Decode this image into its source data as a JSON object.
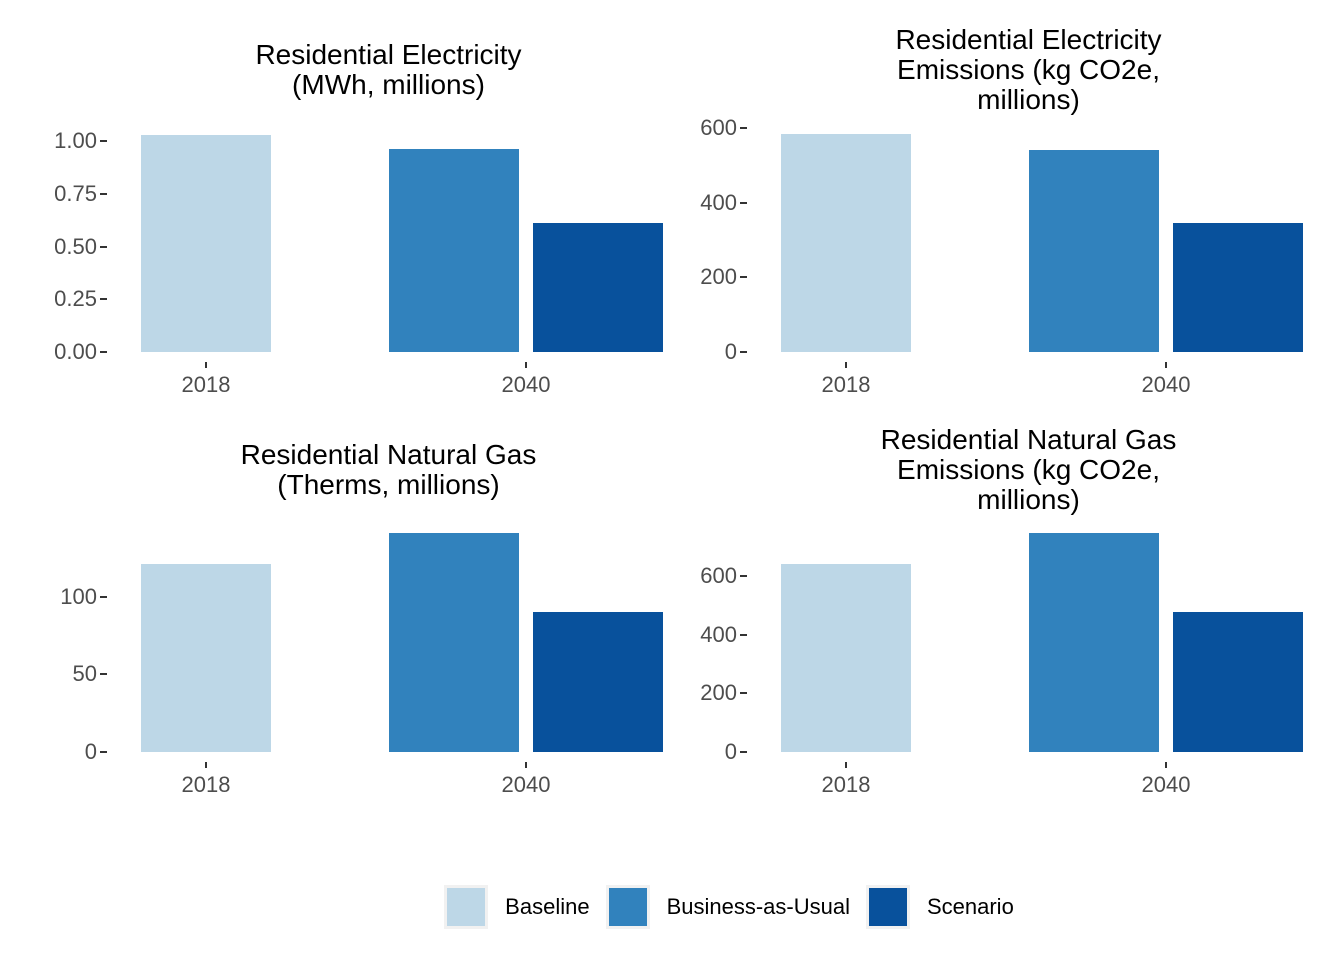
{
  "page": {
    "background": "#FFFFFF"
  },
  "colors": {
    "baseline": "#BDD7E7",
    "business_as_usual": "#3182BD",
    "scenario": "#08519C",
    "axis_text": "#4D4D4D",
    "tick_mark": "#333333",
    "title_text": "#000000"
  },
  "legend": {
    "position": "bottom",
    "items": [
      {
        "label": "Baseline",
        "color": "#BDD7E7"
      },
      {
        "label": "Business-as-Usual",
        "color": "#3182BD"
      },
      {
        "label": "Scenario",
        "color": "#08519C"
      }
    ]
  },
  "chart_data": [
    {
      "type": "bar",
      "title": "Residential Electricity\n(MWh, millions)",
      "categories": [
        "2018",
        "2040"
      ],
      "series": [
        {
          "name": "Baseline",
          "color": "#BDD7E7",
          "values": [
            1.03,
            null
          ]
        },
        {
          "name": "Business-as-Usual",
          "color": "#3182BD",
          "values": [
            null,
            0.96
          ]
        },
        {
          "name": "Scenario",
          "color": "#08519C",
          "values": [
            null,
            0.61
          ]
        }
      ],
      "yticks": [
        {
          "label": "0.00",
          "value": 0
        },
        {
          "label": "0.25",
          "value": 0.25
        },
        {
          "label": "0.50",
          "value": 0.5
        },
        {
          "label": "0.75",
          "value": 0.75
        },
        {
          "label": "1.00",
          "value": 1.0
        }
      ],
      "ylim": [
        0,
        1.09
      ],
      "grid": false
    },
    {
      "type": "bar",
      "title": "Residential Electricity\nEmissions (kg CO2e,\nmillions)",
      "categories": [
        "2018",
        "2040"
      ],
      "series": [
        {
          "name": "Baseline",
          "color": "#BDD7E7",
          "values": [
            585,
            null
          ]
        },
        {
          "name": "Business-as-Usual",
          "color": "#3182BD",
          "values": [
            null,
            542
          ]
        },
        {
          "name": "Scenario",
          "color": "#08519C",
          "values": [
            null,
            346
          ]
        }
      ],
      "yticks": [
        {
          "label": "0",
          "value": 0
        },
        {
          "label": "200",
          "value": 200
        },
        {
          "label": "400",
          "value": 400
        },
        {
          "label": "600",
          "value": 600
        }
      ],
      "ylim": [
        0,
        616
      ],
      "grid": false
    },
    {
      "type": "bar",
      "title": "Residential Natural Gas\n(Therms, millions)",
      "categories": [
        "2018",
        "2040"
      ],
      "series": [
        {
          "name": "Baseline",
          "color": "#BDD7E7",
          "values": [
            121,
            null
          ]
        },
        {
          "name": "Business-as-Usual",
          "color": "#3182BD",
          "values": [
            null,
            141
          ]
        },
        {
          "name": "Scenario",
          "color": "#08519C",
          "values": [
            null,
            90
          ]
        }
      ],
      "yticks": [
        {
          "label": "0",
          "value": 0
        },
        {
          "label": "50",
          "value": 50
        },
        {
          "label": "100",
          "value": 100
        }
      ],
      "ylim": [
        0,
        148
      ],
      "grid": false
    },
    {
      "type": "bar",
      "title": "Residential Natural Gas\nEmissions (kg CO2e,\nmillions)",
      "categories": [
        "2018",
        "2040"
      ],
      "series": [
        {
          "name": "Baseline",
          "color": "#BDD7E7",
          "values": [
            643,
            null
          ]
        },
        {
          "name": "Business-as-Usual",
          "color": "#3182BD",
          "values": [
            null,
            747
          ]
        },
        {
          "name": "Scenario",
          "color": "#08519C",
          "values": [
            null,
            477
          ]
        }
      ],
      "yticks": [
        {
          "label": "0",
          "value": 0
        },
        {
          "label": "200",
          "value": 200
        },
        {
          "label": "400",
          "value": 400
        },
        {
          "label": "600",
          "value": 600
        }
      ],
      "ylim": [
        0,
        786
      ],
      "grid": false
    }
  ]
}
